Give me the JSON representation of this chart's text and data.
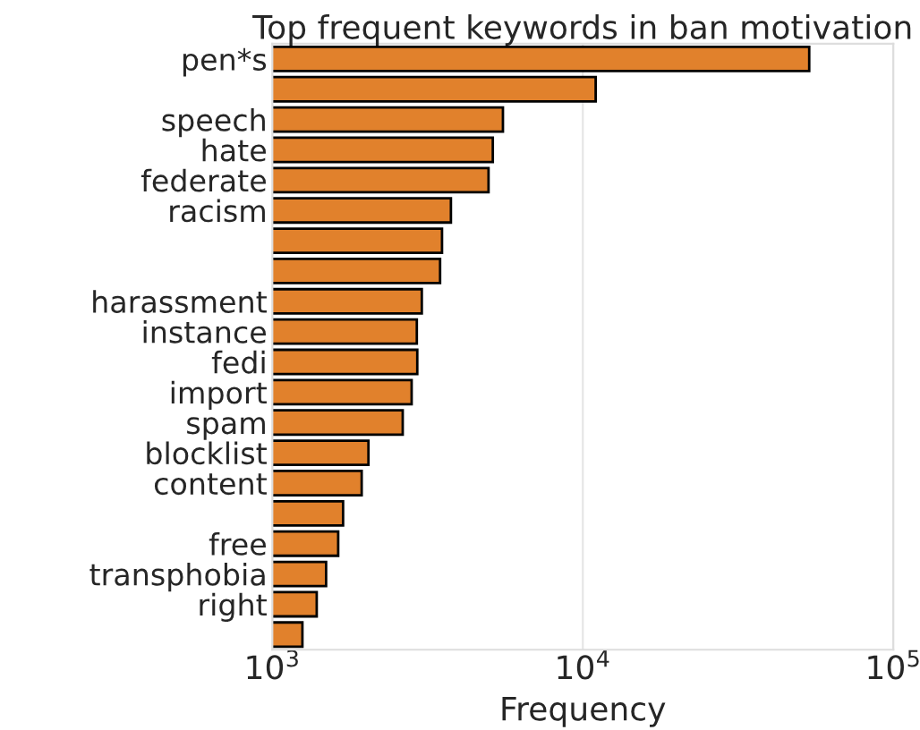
{
  "chart_data": {
    "type": "bar",
    "orientation": "horizontal",
    "title": "Top frequent keywords in ban motivation",
    "xlabel": "Frequency",
    "categories": [
      "pen*s",
      null,
      "speech",
      "hate",
      "federate",
      "racism",
      null,
      null,
      "harassment",
      "instance",
      "fedi",
      "import",
      "spam",
      "blocklist",
      "content",
      null,
      "free",
      "transphobia",
      "right",
      null
    ],
    "values": [
      53600,
      11000,
      5530,
      5130,
      4970,
      3760,
      3520,
      3470,
      3030,
      2920,
      2930,
      2810,
      2630,
      2040,
      1940,
      1690,
      1630,
      1490,
      1390,
      1250
    ],
    "color": "#e1812c",
    "log": "x",
    "xlim": [
      1000,
      100000
    ],
    "xticks": [
      {
        "value": 1000,
        "label": "10$^{3}$"
      },
      {
        "value": 10000,
        "label": "10$^{4}$"
      },
      {
        "value": 100000,
        "label": "10$^{5}$"
      }
    ],
    "grid": "x",
    "legend": false
  }
}
